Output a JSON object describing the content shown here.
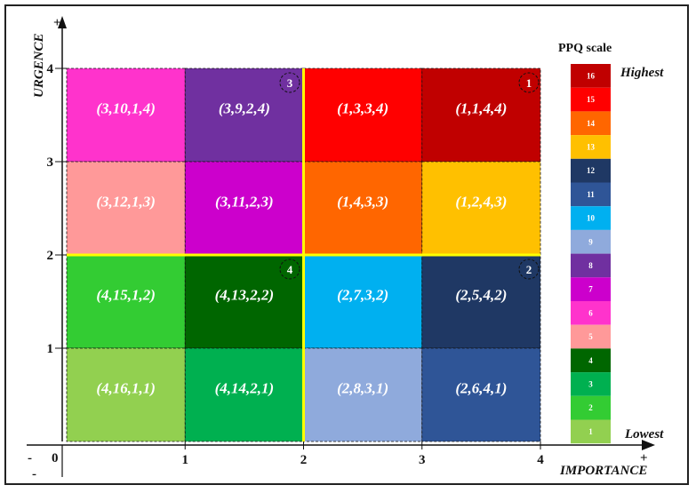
{
  "axes": {
    "x_title": "IMPORTANCE",
    "y_title": "URGENCE",
    "x_ticks": [
      "1",
      "2",
      "3",
      "4"
    ],
    "y_ticks": [
      "1",
      "2",
      "3",
      "4"
    ],
    "origin": "0",
    "plus": "+",
    "minus": "-"
  },
  "grid": {
    "rows": [
      [
        {
          "label": "(3,10,1,4)",
          "color": "#ff33cc"
        },
        {
          "label": "(3,9,2,4)",
          "color": "#7030a0"
        },
        {
          "label": "(1,3,3,4)",
          "color": "#ff0000"
        },
        {
          "label": "(1,1,4,4)",
          "color": "#c00000"
        }
      ],
      [
        {
          "label": "(3,12,1,3)",
          "color": "#ff9999"
        },
        {
          "label": "(3,11,2,3)",
          "color": "#cc00cc"
        },
        {
          "label": "(1,4,3,3)",
          "color": "#ff6600"
        },
        {
          "label": "(1,2,4,3)",
          "color": "#ffc000"
        }
      ],
      [
        {
          "label": "(4,15,1,2)",
          "color": "#33cc33"
        },
        {
          "label": "(4,13,2,2)",
          "color": "#006600"
        },
        {
          "label": "(2,7,3,2)",
          "color": "#00b0f0"
        },
        {
          "label": "(2,5,4,2)",
          "color": "#1f3864"
        }
      ],
      [
        {
          "label": "(4,16,1,1)",
          "color": "#92d050"
        },
        {
          "label": "(4,14,2,1)",
          "color": "#00b050"
        },
        {
          "label": "(2,8,3,1)",
          "color": "#8faadc"
        },
        {
          "label": "(2,6,4,1)",
          "color": "#2f5597"
        }
      ]
    ],
    "divider_color": "#ffff00",
    "quadrant_markers": [
      "1",
      "2",
      "3",
      "4"
    ]
  },
  "scale": {
    "title": "PPQ scale",
    "highest": "Highest",
    "lowest": "Lowest",
    "levels": [
      {
        "n": "16",
        "color": "#c00000"
      },
      {
        "n": "15",
        "color": "#ff0000"
      },
      {
        "n": "14",
        "color": "#ff6600"
      },
      {
        "n": "13",
        "color": "#ffc000"
      },
      {
        "n": "12",
        "color": "#1f3864"
      },
      {
        "n": "11",
        "color": "#2f5597"
      },
      {
        "n": "10",
        "color": "#00b0f0"
      },
      {
        "n": "9",
        "color": "#8faadc"
      },
      {
        "n": "8",
        "color": "#7030a0"
      },
      {
        "n": "7",
        "color": "#cc00cc"
      },
      {
        "n": "6",
        "color": "#ff33cc"
      },
      {
        "n": "5",
        "color": "#ff9999"
      },
      {
        "n": "4",
        "color": "#006600"
      },
      {
        "n": "3",
        "color": "#00b050"
      },
      {
        "n": "2",
        "color": "#33cc33"
      },
      {
        "n": "1",
        "color": "#92d050"
      }
    ]
  }
}
